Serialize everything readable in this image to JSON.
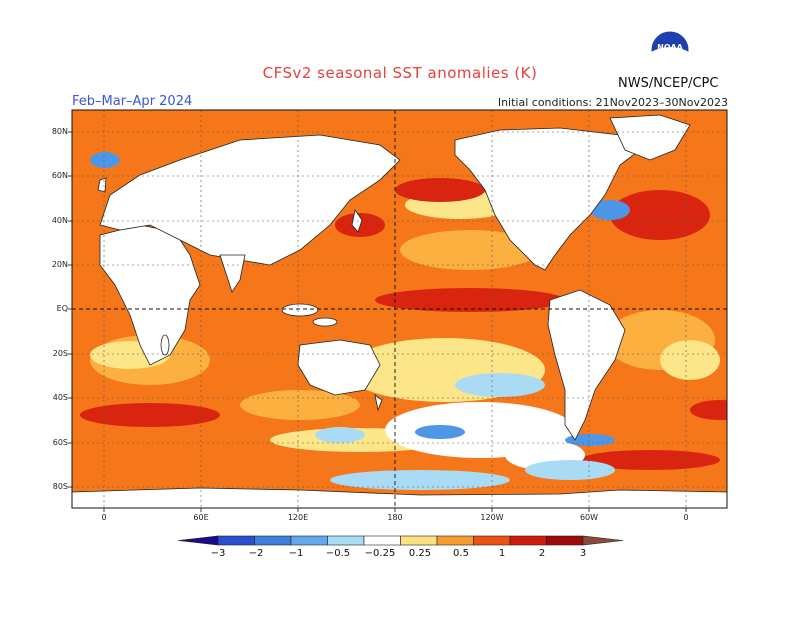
{
  "title": "CFSv2 seasonal SST anomalies (K)",
  "season": "Feb–Mar–Apr 2024",
  "initial_conditions": "Initial conditions: 21Nov2023–30Nov2023",
  "org": "NWS/NCEP/CPC",
  "logo_text": "NOAA",
  "lat_labels": [
    "80N",
    "60N",
    "40N",
    "20N",
    "EQ",
    "20S",
    "40S",
    "60S",
    "80S"
  ],
  "lon_labels": [
    "0",
    "60E",
    "120E",
    "180",
    "120W",
    "60W",
    "0"
  ],
  "colorbar": {
    "labels": [
      "−3",
      "−2",
      "−1",
      "−0.5",
      "−0.25",
      "0.25",
      "0.5",
      "1",
      "2",
      "3"
    ],
    "colors": [
      "#1a0a8c",
      "#2a4fcf",
      "#3f7fe0",
      "#62a8ee",
      "#a9dbf5",
      "#ffffff",
      "#fde080",
      "#f99c2e",
      "#ee5210",
      "#d11a0e",
      "#9e0a0a",
      "#8b4a3c"
    ]
  },
  "palette": {
    "land": "#ffffff",
    "ocean_base": "#f6761a",
    "weak_warm": "#fbb040",
    "very_weak_warm": "#fde58a",
    "strong_warm": "#d9250f",
    "neutral": "#ffffff",
    "weak_cool": "#a9dbf5",
    "cool": "#4e96e8",
    "strong_cool": "#2a4fcf",
    "title_color": "#e8403a",
    "season_color": "#3a56d8"
  }
}
